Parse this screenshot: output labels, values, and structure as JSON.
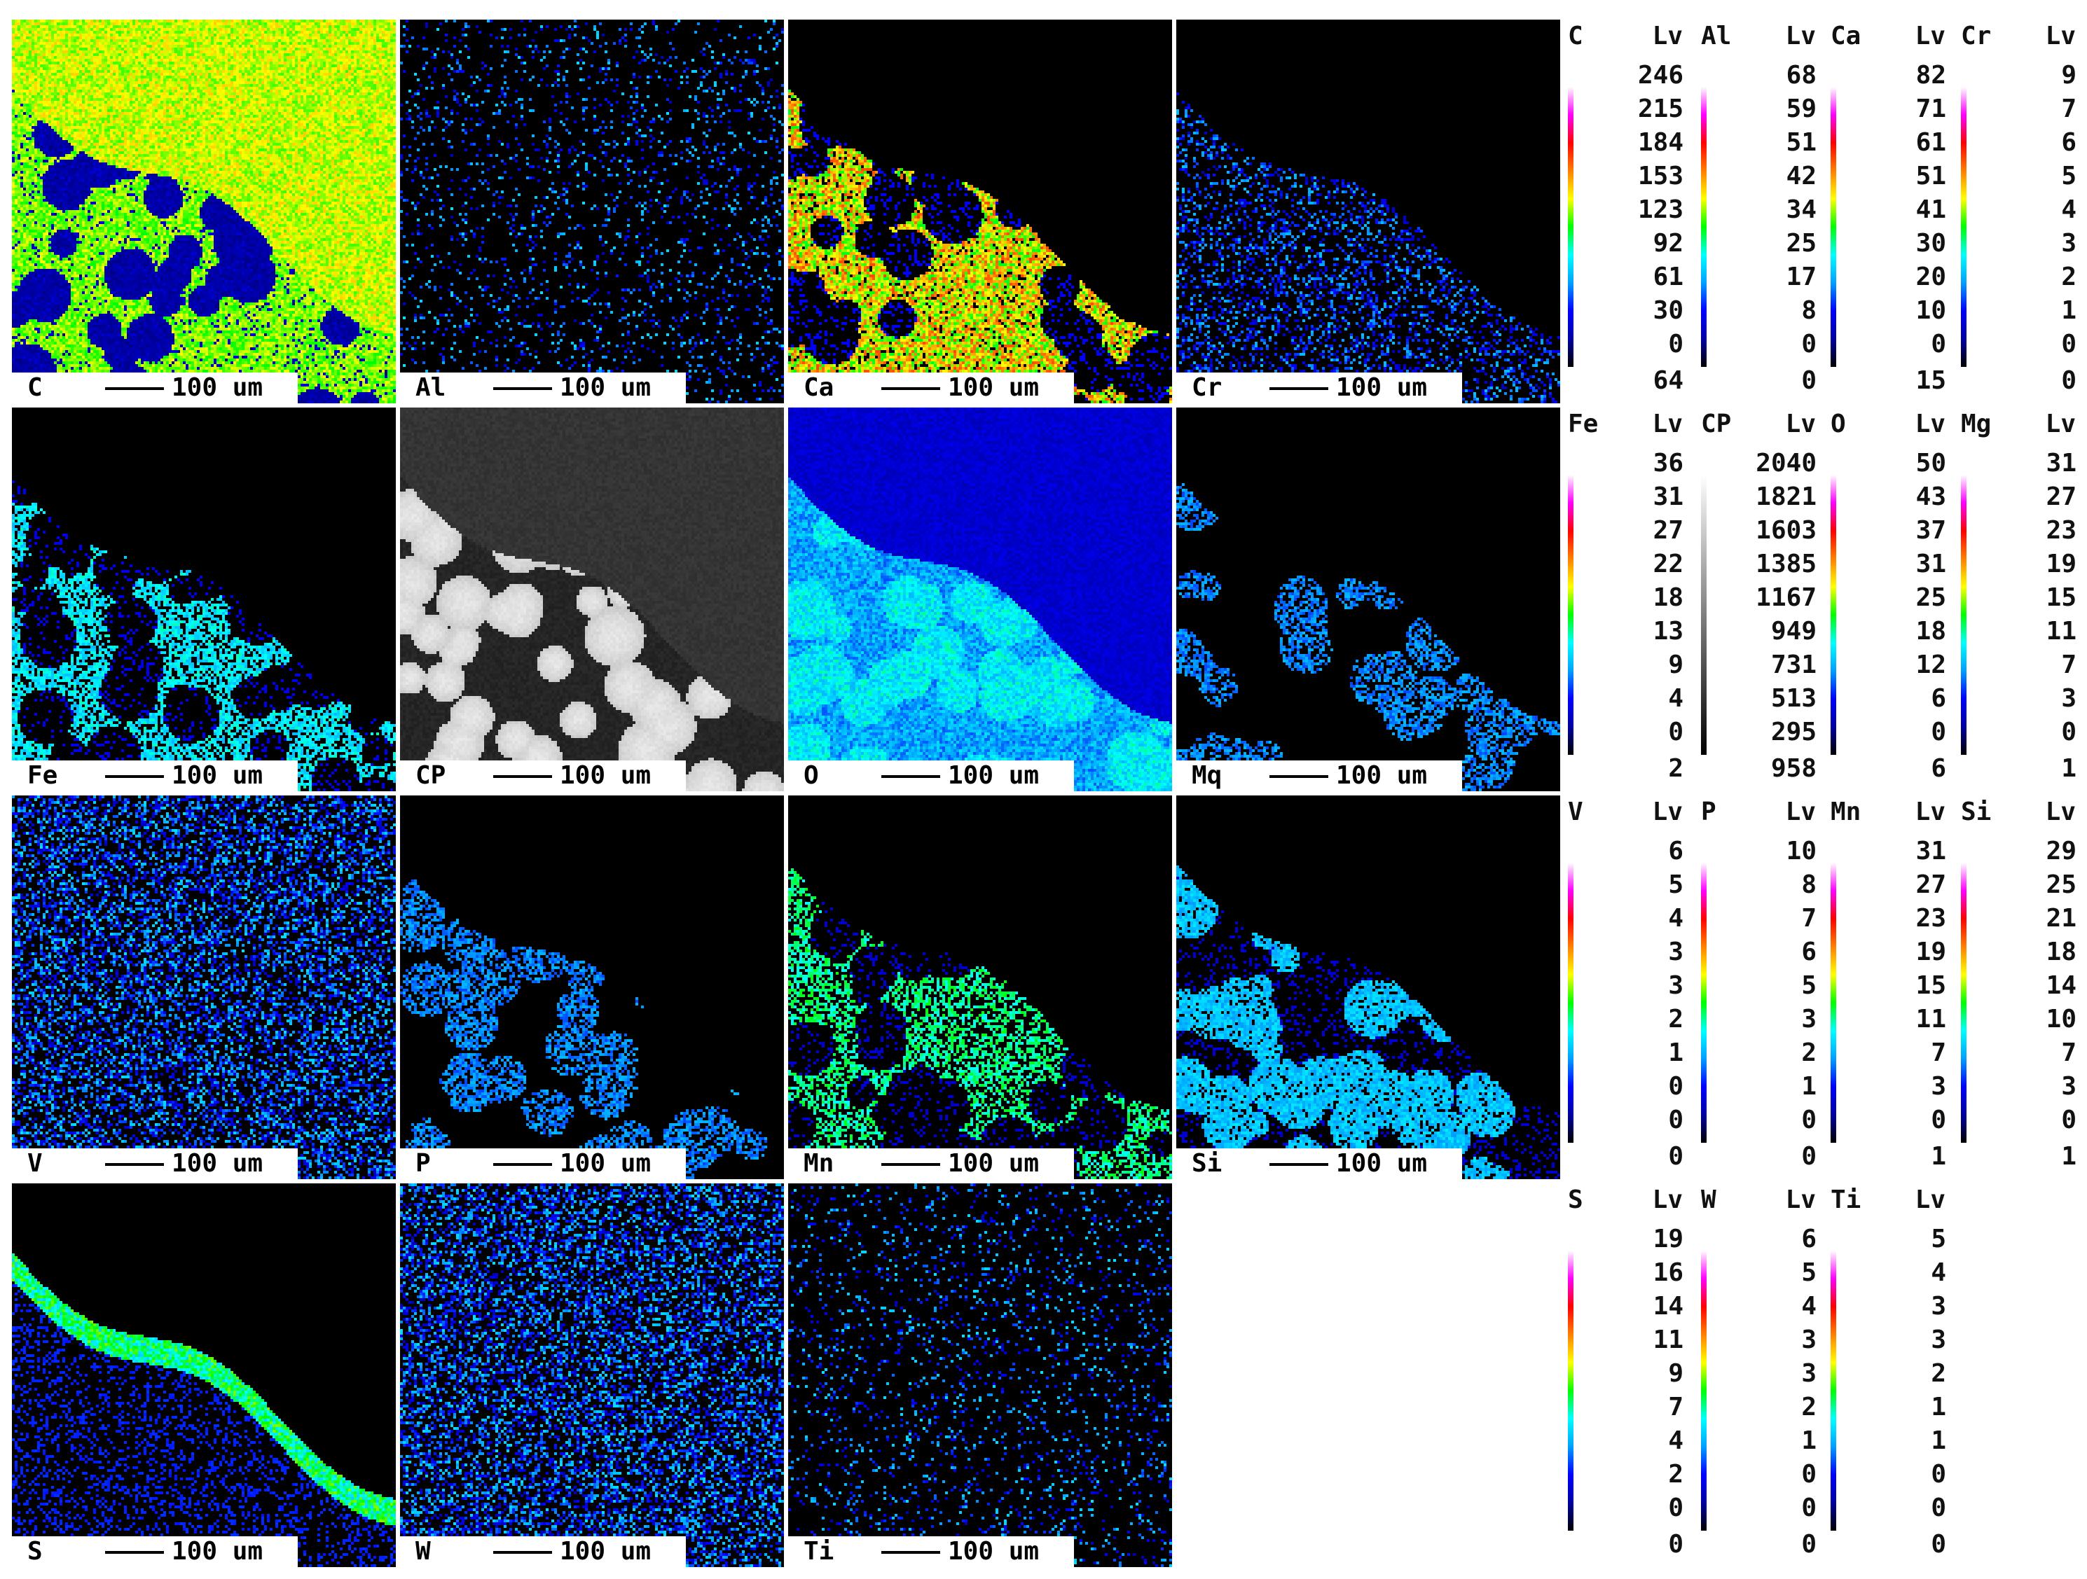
{
  "scale_label": "100 um",
  "colormap_rainbow": [
    "#000000",
    "#0000a0",
    "#0000ff",
    "#00a0ff",
    "#00ffff",
    "#00ff00",
    "#ffff00",
    "#ff8000",
    "#ff0000",
    "#ff00ff",
    "#ffffff"
  ],
  "colormap_gray": [
    "#000000",
    "#ffffff"
  ],
  "maps": [
    {
      "element": "C",
      "label": "C",
      "style": "c"
    },
    {
      "element": "Al",
      "label": "Al",
      "style": "sparse-dark"
    },
    {
      "element": "Ca",
      "label": "Ca",
      "style": "grains-hot"
    },
    {
      "element": "Cr",
      "label": "Cr",
      "style": "sparse-blue"
    },
    {
      "element": "Fe",
      "label": "Fe",
      "style": "grains-cyan"
    },
    {
      "element": "CP",
      "label": "CP",
      "style": "gray"
    },
    {
      "element": "O",
      "label": "O",
      "style": "o"
    },
    {
      "element": "Mg",
      "label": "Mq",
      "style": "grains-blue"
    },
    {
      "element": "V",
      "label": "V",
      "style": "noise"
    },
    {
      "element": "P",
      "label": "P",
      "style": "grains-blue"
    },
    {
      "element": "Mn",
      "label": "Mn",
      "style": "grains-green"
    },
    {
      "element": "Si",
      "label": "Si",
      "style": "grains-cyan2"
    },
    {
      "element": "S",
      "label": "S",
      "style": "s"
    },
    {
      "element": "W",
      "label": "W",
      "style": "noise"
    },
    {
      "element": "Ti",
      "label": "Ti",
      "style": "noise-sparse"
    }
  ],
  "scales": [
    {
      "element": "C",
      "unit": "Lv",
      "levels": [
        "246",
        "215",
        "184",
        "153",
        "123",
        "92",
        "61",
        "30",
        "0"
      ],
      "extra": "64"
    },
    {
      "element": "Al",
      "unit": "Lv",
      "levels": [
        "68",
        "59",
        "51",
        "42",
        "34",
        "25",
        "17",
        "8",
        "0"
      ],
      "extra": "0"
    },
    {
      "element": "Ca",
      "unit": "Lv",
      "levels": [
        "82",
        "71",
        "61",
        "51",
        "41",
        "30",
        "20",
        "10",
        "0"
      ],
      "extra": "15"
    },
    {
      "element": "Cr",
      "unit": "Lv",
      "levels": [
        "9",
        "7",
        "6",
        "5",
        "4",
        "3",
        "2",
        "1",
        "0"
      ],
      "extra": "0"
    },
    {
      "element": "Fe",
      "unit": "Lv",
      "levels": [
        "36",
        "31",
        "27",
        "22",
        "18",
        "13",
        "9",
        "4",
        "0"
      ],
      "extra": "2"
    },
    {
      "element": "CP",
      "unit": "Lv",
      "levels": [
        "2040",
        "1821",
        "1603",
        "1385",
        "1167",
        "949",
        "731",
        "513",
        "295"
      ],
      "extra": "958",
      "gray": true
    },
    {
      "element": "O",
      "unit": "Lv",
      "levels": [
        "50",
        "43",
        "37",
        "31",
        "25",
        "18",
        "12",
        "6",
        "0"
      ],
      "extra": "6"
    },
    {
      "element": "Mg",
      "unit": "Lv",
      "levels": [
        "31",
        "27",
        "23",
        "19",
        "15",
        "11",
        "7",
        "3",
        "0"
      ],
      "extra": "1"
    },
    {
      "element": "V",
      "unit": "Lv",
      "levels": [
        "6",
        "5",
        "4",
        "3",
        "3",
        "2",
        "1",
        "0",
        "0"
      ],
      "extra": "0"
    },
    {
      "element": "P",
      "unit": "Lv",
      "levels": [
        "10",
        "8",
        "7",
        "6",
        "5",
        "3",
        "2",
        "1",
        "0"
      ],
      "extra": "0"
    },
    {
      "element": "Mn",
      "unit": "Lv",
      "levels": [
        "31",
        "27",
        "23",
        "19",
        "15",
        "11",
        "7",
        "3",
        "0"
      ],
      "extra": "1"
    },
    {
      "element": "Si",
      "unit": "Lv",
      "levels": [
        "29",
        "25",
        "21",
        "18",
        "14",
        "10",
        "7",
        "3",
        "0"
      ],
      "extra": "1"
    },
    {
      "element": "S",
      "unit": "Lv",
      "levels": [
        "19",
        "16",
        "14",
        "11",
        "9",
        "7",
        "4",
        "2",
        "0"
      ],
      "extra": "0"
    },
    {
      "element": "W",
      "unit": "Lv",
      "levels": [
        "6",
        "5",
        "4",
        "3",
        "3",
        "2",
        "1",
        "0",
        "0"
      ],
      "extra": "0"
    },
    {
      "element": "Ti",
      "unit": "Lv",
      "levels": [
        "5",
        "4",
        "3",
        "3",
        "2",
        "1",
        "1",
        "0",
        "0"
      ],
      "extra": "0"
    }
  ]
}
